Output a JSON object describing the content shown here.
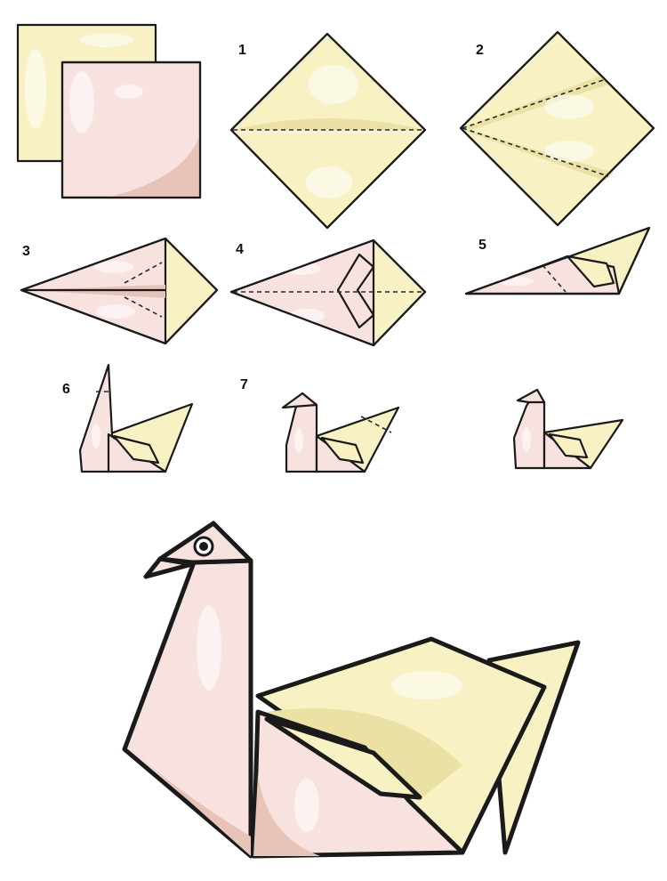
{
  "colors": {
    "yellow": "#f7f1c4",
    "yellow_shade": "#ece1a4",
    "pink": "#f7e2df",
    "pink_shade": "#e8c3b8",
    "outline": "#1a1a1a"
  },
  "steps": [
    {
      "label": ""
    },
    {
      "label": "1"
    },
    {
      "label": "2"
    },
    {
      "label": "3"
    },
    {
      "label": "4"
    },
    {
      "label": "5"
    },
    {
      "label": "6"
    },
    {
      "label": "7"
    },
    {
      "label": ""
    }
  ]
}
